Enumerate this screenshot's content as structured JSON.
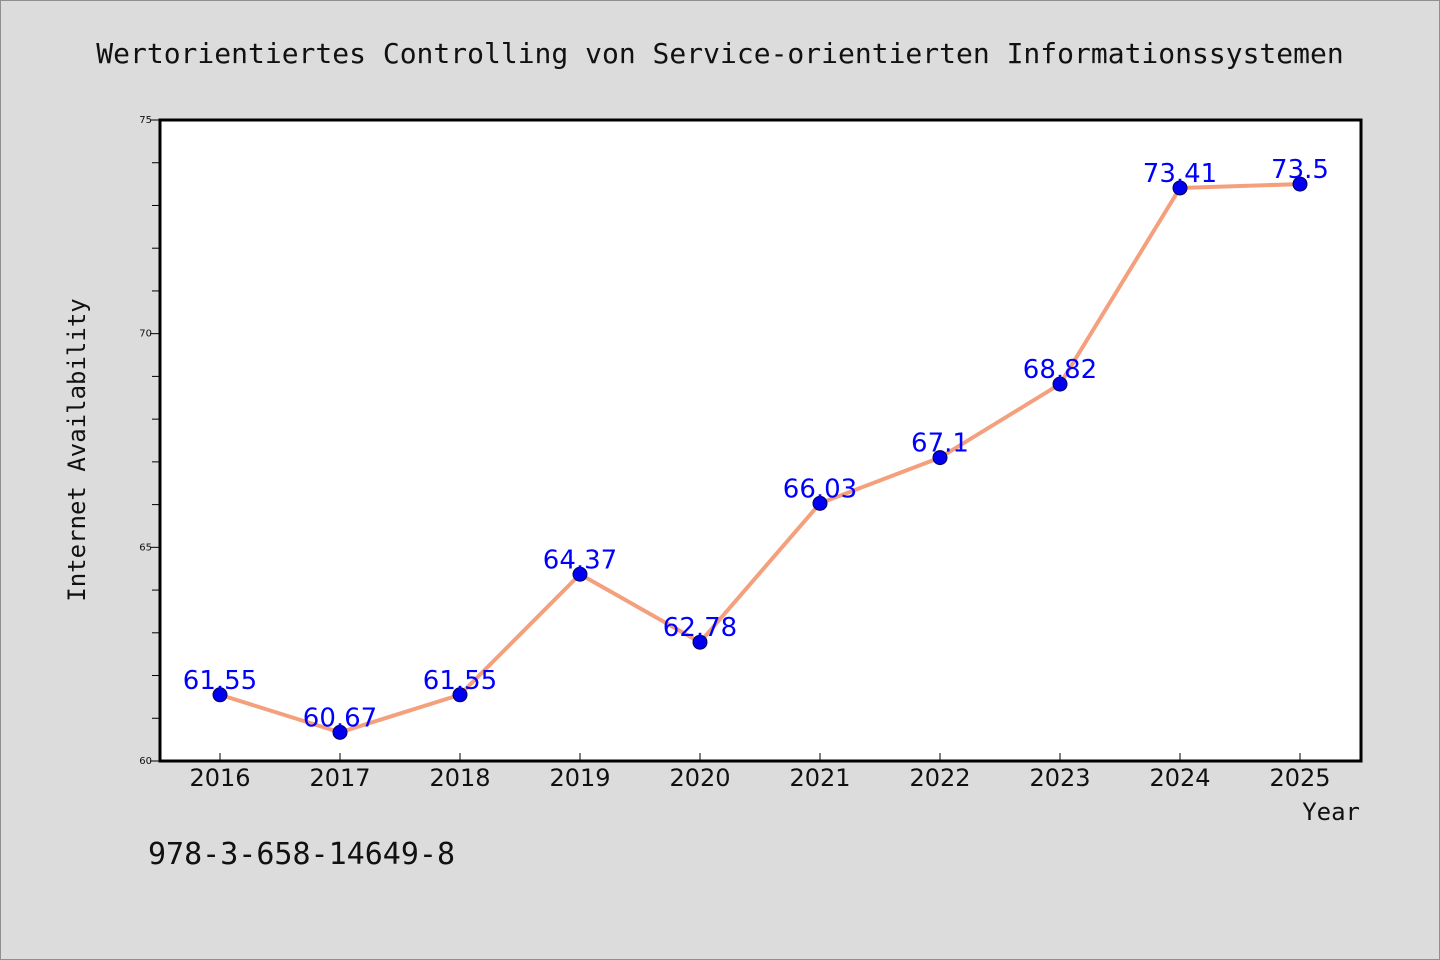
{
  "isbn": "978-3-658-14649-8",
  "colors": {
    "background": "#dcdcdc",
    "plot_background": "#ffffff",
    "line": "#f4a07d",
    "marker": "#0000ee",
    "label": "#0000ff"
  },
  "chart_data": {
    "type": "line",
    "title": "Wertorientiertes Controlling von Service-orientierten Informationssystemen",
    "xlabel": "Year",
    "ylabel": "Internet Availability",
    "categories": [
      "2016",
      "2017",
      "2018",
      "2019",
      "2020",
      "2021",
      "2022",
      "2023",
      "2024",
      "2025"
    ],
    "series": [
      {
        "values": [
          61.55,
          60.67,
          61.55,
          64.37,
          62.78,
          66.03,
          67.1,
          68.82,
          73.41,
          73.5
        ],
        "labels": [
          "61.55",
          "60.67",
          "61.55",
          "64.37",
          "62.78",
          "66.03",
          "67.1",
          "68.82",
          "73.41",
          "73.5"
        ]
      }
    ],
    "ylim": [
      60,
      75
    ],
    "yticks": [
      60,
      65,
      70,
      75
    ],
    "minor_yticks_per_major": 5,
    "grid": false,
    "legend": "none"
  }
}
